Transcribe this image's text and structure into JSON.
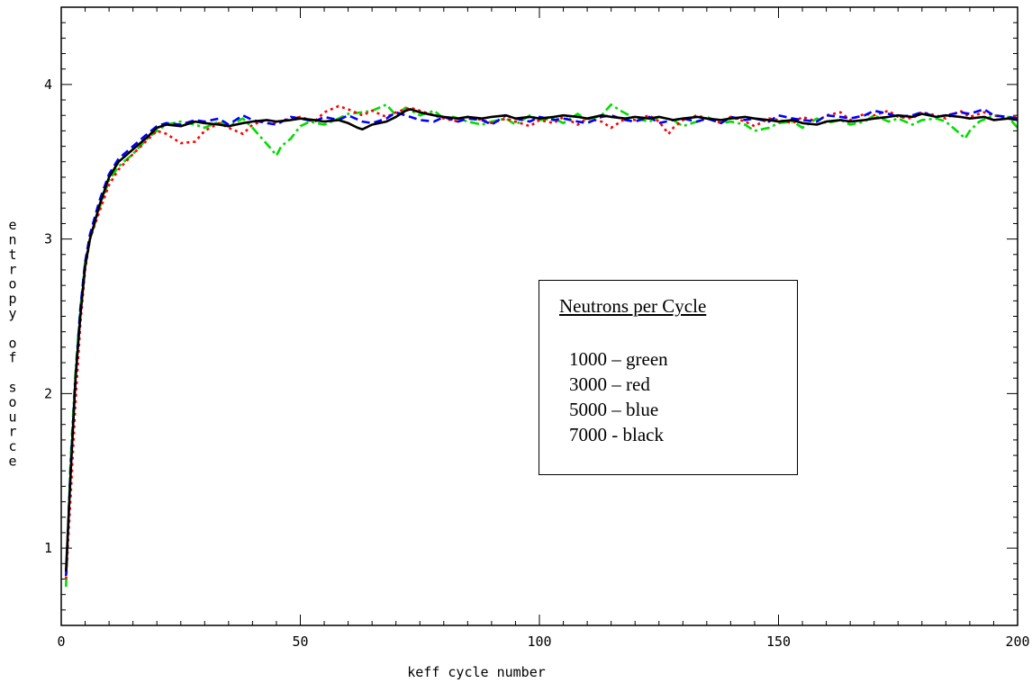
{
  "chart_data": {
    "type": "line",
    "xlabel": "keff cycle number",
    "ylabel": "entropy of source",
    "xlim": [
      0,
      200
    ],
    "ylim": [
      0.5,
      4.5
    ],
    "x_ticks": [
      0,
      50,
      100,
      150,
      200
    ],
    "y_ticks": [
      1,
      2,
      3,
      4
    ],
    "legend": {
      "title": "Neutrons per Cycle",
      "entries": [
        "1000 – green",
        "3000 – red",
        "5000 – blue",
        "7000 - black"
      ]
    },
    "series": [
      {
        "name": "1000",
        "color": "#00dd00",
        "dash": "dash-dot",
        "x": [
          1,
          2,
          3,
          4,
          5,
          6,
          8,
          10,
          12,
          15,
          18,
          20,
          22,
          25,
          28,
          30,
          33,
          35,
          38,
          40,
          42,
          44,
          45,
          46,
          48,
          50,
          52,
          55,
          58,
          60,
          63,
          65,
          68,
          70,
          72,
          75,
          78,
          80,
          82,
          85,
          88,
          90,
          93,
          95,
          98,
          100,
          103,
          105,
          108,
          110,
          113,
          115,
          117,
          120,
          123,
          125,
          128,
          130,
          133,
          135,
          138,
          140,
          143,
          145,
          148,
          150,
          153,
          155,
          158,
          160,
          163,
          165,
          168,
          170,
          173,
          175,
          178,
          180,
          183,
          185,
          188,
          189,
          190,
          192,
          195,
          198,
          200
        ],
        "values": [
          0.75,
          1.6,
          2.15,
          2.55,
          2.85,
          3.0,
          3.2,
          3.38,
          3.47,
          3.55,
          3.65,
          3.7,
          3.74,
          3.76,
          3.74,
          3.72,
          3.76,
          3.73,
          3.78,
          3.72,
          3.65,
          3.58,
          3.54,
          3.6,
          3.65,
          3.73,
          3.76,
          3.74,
          3.78,
          3.81,
          3.82,
          3.83,
          3.87,
          3.8,
          3.85,
          3.8,
          3.83,
          3.78,
          3.79,
          3.76,
          3.74,
          3.76,
          3.78,
          3.74,
          3.8,
          3.77,
          3.78,
          3.75,
          3.81,
          3.77,
          3.8,
          3.87,
          3.83,
          3.78,
          3.76,
          3.79,
          3.77,
          3.73,
          3.76,
          3.79,
          3.75,
          3.76,
          3.74,
          3.7,
          3.72,
          3.75,
          3.76,
          3.72,
          3.78,
          3.75,
          3.77,
          3.74,
          3.76,
          3.8,
          3.76,
          3.78,
          3.74,
          3.77,
          3.78,
          3.76,
          3.68,
          3.65,
          3.7,
          3.76,
          3.8,
          3.79,
          3.72
        ]
      },
      {
        "name": "3000",
        "color": "#ff0000",
        "dash": "dotted",
        "x": [
          1,
          2,
          3,
          4,
          5,
          6,
          8,
          10,
          12,
          15,
          18,
          20,
          22,
          25,
          28,
          30,
          33,
          35,
          38,
          40,
          43,
          45,
          48,
          50,
          53,
          55,
          58,
          60,
          63,
          65,
          68,
          70,
          73,
          75,
          78,
          80,
          83,
          85,
          88,
          90,
          93,
          95,
          98,
          100,
          103,
          105,
          108,
          110,
          113,
          115,
          118,
          120,
          123,
          125,
          127,
          128,
          130,
          133,
          135,
          138,
          140,
          143,
          145,
          148,
          150,
          153,
          155,
          158,
          160,
          163,
          165,
          168,
          170,
          173,
          175,
          178,
          180,
          183,
          185,
          188,
          190,
          193,
          195,
          198,
          200
        ],
        "values": [
          0.8,
          1.35,
          1.95,
          2.45,
          2.8,
          3.0,
          3.18,
          3.35,
          3.45,
          3.55,
          3.64,
          3.7,
          3.68,
          3.62,
          3.63,
          3.7,
          3.75,
          3.72,
          3.68,
          3.74,
          3.77,
          3.75,
          3.78,
          3.79,
          3.76,
          3.82,
          3.86,
          3.84,
          3.8,
          3.83,
          3.79,
          3.82,
          3.85,
          3.83,
          3.8,
          3.78,
          3.76,
          3.79,
          3.77,
          3.75,
          3.78,
          3.76,
          3.73,
          3.77,
          3.75,
          3.79,
          3.74,
          3.78,
          3.76,
          3.72,
          3.78,
          3.77,
          3.8,
          3.76,
          3.68,
          3.72,
          3.77,
          3.8,
          3.78,
          3.75,
          3.79,
          3.76,
          3.73,
          3.78,
          3.77,
          3.75,
          3.79,
          3.76,
          3.8,
          3.82,
          3.77,
          3.81,
          3.8,
          3.83,
          3.79,
          3.78,
          3.82,
          3.8,
          3.78,
          3.83,
          3.79,
          3.82,
          3.8,
          3.78,
          3.8
        ]
      },
      {
        "name": "5000",
        "color": "#0000ff",
        "dash": "dashed",
        "x": [
          1,
          2,
          3,
          4,
          5,
          6,
          8,
          10,
          12,
          15,
          18,
          20,
          22,
          25,
          28,
          30,
          33,
          35,
          38,
          40,
          43,
          45,
          48,
          50,
          53,
          55,
          58,
          60,
          63,
          65,
          68,
          70,
          73,
          75,
          78,
          80,
          83,
          85,
          88,
          90,
          93,
          95,
          98,
          100,
          103,
          105,
          108,
          110,
          113,
          115,
          118,
          120,
          123,
          125,
          128,
          130,
          133,
          135,
          138,
          140,
          143,
          145,
          148,
          150,
          153,
          155,
          158,
          160,
          163,
          165,
          168,
          170,
          173,
          175,
          178,
          180,
          183,
          185,
          188,
          190,
          193,
          195,
          198,
          200
        ],
        "values": [
          0.82,
          1.55,
          2.1,
          2.55,
          2.85,
          3.03,
          3.25,
          3.42,
          3.52,
          3.6,
          3.68,
          3.73,
          3.75,
          3.74,
          3.77,
          3.76,
          3.78,
          3.74,
          3.8,
          3.77,
          3.75,
          3.74,
          3.79,
          3.78,
          3.76,
          3.79,
          3.77,
          3.8,
          3.76,
          3.75,
          3.78,
          3.82,
          3.79,
          3.77,
          3.76,
          3.79,
          3.76,
          3.78,
          3.77,
          3.74,
          3.8,
          3.78,
          3.76,
          3.79,
          3.77,
          3.78,
          3.76,
          3.75,
          3.79,
          3.8,
          3.77,
          3.76,
          3.79,
          3.75,
          3.77,
          3.78,
          3.76,
          3.78,
          3.75,
          3.79,
          3.77,
          3.78,
          3.76,
          3.8,
          3.78,
          3.77,
          3.76,
          3.8,
          3.79,
          3.78,
          3.8,
          3.83,
          3.81,
          3.79,
          3.8,
          3.82,
          3.79,
          3.8,
          3.82,
          3.81,
          3.84,
          3.8,
          3.79,
          3.78
        ]
      },
      {
        "name": "7000",
        "color": "#000000",
        "dash": "solid",
        "x": [
          1,
          2,
          3,
          4,
          5,
          6,
          8,
          10,
          12,
          15,
          18,
          20,
          22,
          25,
          28,
          30,
          33,
          35,
          38,
          40,
          43,
          45,
          48,
          50,
          53,
          55,
          58,
          60,
          62,
          63,
          65,
          68,
          70,
          72,
          73,
          75,
          78,
          80,
          83,
          85,
          88,
          90,
          93,
          95,
          98,
          100,
          103,
          105,
          108,
          110,
          113,
          115,
          118,
          120,
          123,
          125,
          128,
          130,
          133,
          135,
          138,
          140,
          143,
          145,
          148,
          150,
          153,
          155,
          158,
          160,
          163,
          165,
          168,
          170,
          173,
          175,
          178,
          180,
          183,
          185,
          188,
          190,
          193,
          195,
          198,
          200
        ],
        "values": [
          0.85,
          1.5,
          2.1,
          2.5,
          2.82,
          3.0,
          3.22,
          3.4,
          3.5,
          3.58,
          3.66,
          3.72,
          3.74,
          3.73,
          3.76,
          3.75,
          3.74,
          3.73,
          3.75,
          3.76,
          3.77,
          3.76,
          3.77,
          3.78,
          3.77,
          3.76,
          3.77,
          3.75,
          3.72,
          3.71,
          3.74,
          3.76,
          3.79,
          3.83,
          3.84,
          3.82,
          3.8,
          3.79,
          3.78,
          3.79,
          3.78,
          3.79,
          3.8,
          3.78,
          3.79,
          3.78,
          3.79,
          3.8,
          3.79,
          3.78,
          3.8,
          3.79,
          3.78,
          3.79,
          3.78,
          3.79,
          3.77,
          3.78,
          3.79,
          3.78,
          3.77,
          3.78,
          3.79,
          3.78,
          3.77,
          3.76,
          3.77,
          3.75,
          3.74,
          3.76,
          3.77,
          3.76,
          3.77,
          3.78,
          3.79,
          3.8,
          3.79,
          3.81,
          3.79,
          3.8,
          3.79,
          3.78,
          3.79,
          3.77,
          3.78,
          3.77
        ]
      }
    ]
  }
}
